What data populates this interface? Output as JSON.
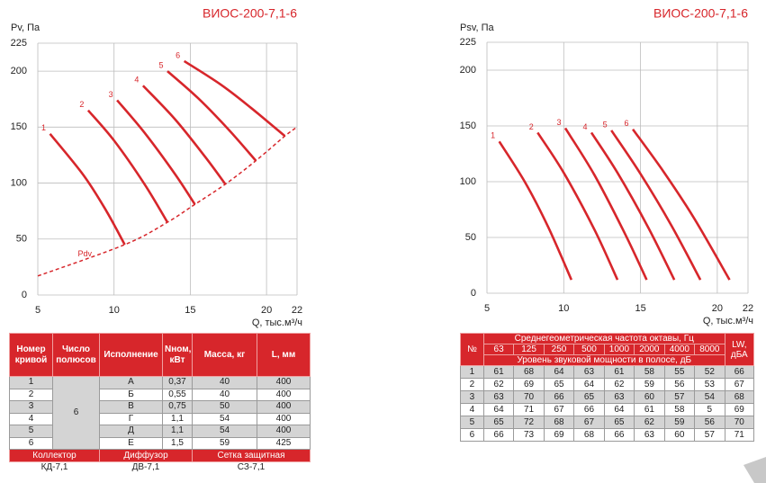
{
  "chart_data": [
    {
      "type": "line",
      "title": "ВИОС-200-7,1-6",
      "ylabel": "Pv, Па",
      "xlabel": "Q, тыс.м³/ч",
      "xlim": [
        5,
        22
      ],
      "xticks": [
        5,
        10,
        15,
        20,
        22
      ],
      "ylim": [
        0,
        225
      ],
      "yticks": [
        0,
        50,
        100,
        150,
        200,
        225
      ],
      "grid": true,
      "series": [
        {
          "name": "1",
          "color": "#d7262b",
          "x": [
            5.8,
            8,
            9.5,
            10.7
          ],
          "values": [
            144,
            107,
            75,
            45
          ]
        },
        {
          "name": "2",
          "color": "#d7262b",
          "x": [
            8.3,
            10,
            12,
            13.5
          ],
          "values": [
            165,
            138,
            99,
            65
          ]
        },
        {
          "name": "3",
          "color": "#d7262b",
          "x": [
            10.2,
            12,
            14,
            15.3
          ],
          "values": [
            174,
            145,
            108,
            81
          ]
        },
        {
          "name": "4",
          "color": "#d7262b",
          "x": [
            11.9,
            14,
            16,
            17.3
          ],
          "values": [
            187,
            157,
            123,
            99
          ]
        },
        {
          "name": "5",
          "color": "#d7262b",
          "x": [
            13.5,
            15.5,
            17.5,
            19.3
          ],
          "values": [
            200,
            176,
            148,
            120
          ]
        },
        {
          "name": "6",
          "color": "#d7262b",
          "x": [
            14.6,
            17,
            19,
            21.2
          ],
          "values": [
            209,
            188,
            167,
            142
          ]
        },
        {
          "name": "Pdv",
          "color": "#d7262b",
          "linestyle": "dashed",
          "x": [
            5,
            10.7,
            13.5,
            15.3,
            17.3,
            19.3,
            21.2,
            22
          ],
          "values": [
            17,
            45,
            65,
            81,
            99,
            120,
            142,
            150
          ]
        }
      ]
    },
    {
      "type": "line",
      "title": "ВИОС-200-7,1-6",
      "ylabel": "Psv, Па",
      "xlabel": "Q, тыс.м³/ч",
      "xlim": [
        5,
        22
      ],
      "xticks": [
        5,
        10,
        15,
        20,
        22
      ],
      "ylim": [
        0,
        225
      ],
      "yticks": [
        0,
        50,
        100,
        150,
        200,
        225
      ],
      "grid": true,
      "series": [
        {
          "name": "1",
          "color": "#d7262b",
          "x": [
            5.8,
            7.5,
            9,
            10.5
          ],
          "values": [
            136,
            99,
            59,
            12
          ]
        },
        {
          "name": "2",
          "color": "#d7262b",
          "x": [
            8.3,
            10,
            12,
            13.5
          ],
          "values": [
            144,
            108,
            57,
            12
          ]
        },
        {
          "name": "3",
          "color": "#d7262b",
          "x": [
            10.1,
            12,
            14,
            15.4
          ],
          "values": [
            148,
            106,
            53,
            12
          ]
        },
        {
          "name": "4",
          "color": "#d7262b",
          "x": [
            11.8,
            13.5,
            15.5,
            17.2
          ],
          "values": [
            144,
            108,
            59,
            12
          ]
        },
        {
          "name": "5",
          "color": "#d7262b",
          "x": [
            13.1,
            15,
            17,
            18.9
          ],
          "values": [
            146,
            107,
            61,
            12
          ]
        },
        {
          "name": "6",
          "color": "#d7262b",
          "x": [
            14.5,
            16.5,
            18.5,
            20.8
          ],
          "values": [
            147,
            109,
            67,
            12
          ]
        }
      ]
    }
  ],
  "fan_table": {
    "headers": [
      "Номер кривой",
      "Число полюсов",
      "Исполнение",
      "Nном, кВт",
      "Масса, кг",
      "L, мм"
    ],
    "poles": "6",
    "rows": [
      [
        "1",
        "А",
        "0,37",
        "40",
        "400"
      ],
      [
        "2",
        "Б",
        "0,55",
        "40",
        "400"
      ],
      [
        "3",
        "В",
        "0,75",
        "50",
        "400"
      ],
      [
        "4",
        "Г",
        "1,1",
        "54",
        "400"
      ],
      [
        "5",
        "Д",
        "1,1",
        "54",
        "400"
      ],
      [
        "6",
        "Е",
        "1,5",
        "59",
        "425"
      ]
    ],
    "accessory_headers": [
      "Коллектор",
      "Диффузор",
      "Сетка защитная"
    ],
    "accessory_values": [
      "КД-7,1",
      "ДВ-7,1",
      "СЗ-7,1"
    ]
  },
  "noise_table": {
    "number_header": "№",
    "group_header": "Среднегеометрическая частота октавы, Гц",
    "lw_header": "LW, дБА",
    "frequencies": [
      "63",
      "125",
      "250",
      "500",
      "1000",
      "2000",
      "4000",
      "8000"
    ],
    "subheader": "Уровень звуковой мощности в полосе, дБ",
    "rows": [
      [
        "1",
        "61",
        "68",
        "64",
        "63",
        "61",
        "58",
        "55",
        "52",
        "66"
      ],
      [
        "2",
        "62",
        "69",
        "65",
        "64",
        "62",
        "59",
        "56",
        "53",
        "67"
      ],
      [
        "3",
        "63",
        "70",
        "66",
        "65",
        "63",
        "60",
        "57",
        "54",
        "68"
      ],
      [
        "4",
        "64",
        "71",
        "67",
        "66",
        "64",
        "61",
        "58",
        "5",
        "69"
      ],
      [
        "5",
        "65",
        "72",
        "68",
        "67",
        "65",
        "62",
        "59",
        "56",
        "70"
      ],
      [
        "6",
        "66",
        "73",
        "69",
        "68",
        "66",
        "63",
        "60",
        "57",
        "71"
      ]
    ]
  }
}
